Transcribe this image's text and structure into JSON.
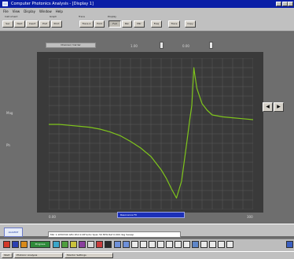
{
  "window": {
    "title": "Computer Photonics Analysis - [Display 1]"
  },
  "menu": {
    "items": [
      "File",
      "View",
      "Display",
      "Window",
      "Help"
    ]
  },
  "toolbar": {
    "groups": [
      "Instrument",
      "Graph",
      "Trace",
      "Display"
    ],
    "buttons": [
      "Sec",
      "Next",
      "Insert",
      "Pref",
      "Print",
      "Trace A",
      "Hold",
      "Full",
      "Pan",
      "Mkr",
      "Freq",
      "Trace",
      "Copy"
    ]
  },
  "panel": {
    "top_field": "Channel / Carrier",
    "top_field_b": "1.00",
    "top_field_c": "0.00",
    "left_label_top": "Mag",
    "left_label_bottom": "Ph",
    "x_min_label": "0.00",
    "x_max_label": "300",
    "bottom_select": "Resonance Fit",
    "right_prev": "◀",
    "right_next": "▶"
  },
  "status": {
    "logo": "AGILENT",
    "text": "Mkr 1.1050340 GHz  Rhd 2.06%/div  Span 50 MHz  Ref 0.000 deg  Sweep"
  },
  "taskbar": {
    "items": [
      "Start",
      "Photonic Analysis",
      "Monitor Settings"
    ]
  },
  "colors": {
    "trace": "#7fc51c",
    "plot_bg": "#3a3a3a",
    "grid": "#5a5a5a"
  },
  "chart_data": {
    "type": "line",
    "title": "",
    "xlabel": "",
    "ylabel": "",
    "x": [
      0,
      10,
      20,
      30,
      40,
      50,
      60,
      70,
      80,
      90,
      100,
      110,
      115,
      120,
      125,
      130,
      135,
      138,
      140,
      141,
      142,
      143,
      145,
      150,
      155,
      160,
      170,
      180,
      190,
      200
    ],
    "y": [
      0.4,
      0.4,
      0.39,
      0.38,
      0.37,
      0.35,
      0.32,
      0.28,
      0.22,
      0.15,
      0.06,
      -0.08,
      -0.17,
      -0.28,
      -0.38,
      -0.2,
      0.2,
      0.45,
      0.6,
      0.8,
      1.0,
      0.92,
      0.78,
      0.62,
      0.55,
      0.5,
      0.48,
      0.47,
      0.46,
      0.45
    ],
    "xlim": [
      0,
      200
    ],
    "ylim": [
      -0.5,
      1.1
    ],
    "grid": true
  }
}
